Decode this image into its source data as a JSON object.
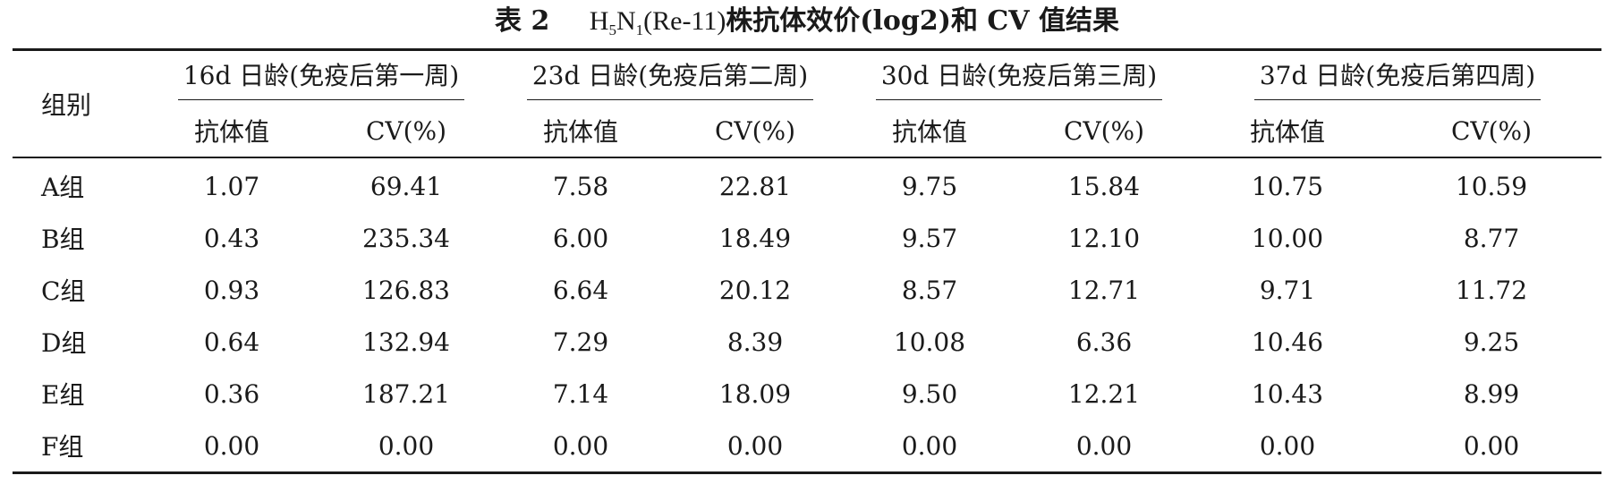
{
  "title": {
    "table_no": "表 2",
    "strain_h": "H",
    "strain_h_sub": "5",
    "strain_n": "N",
    "strain_n_sub": "1",
    "strain_rest": "(Re-11)",
    "rest": "株抗体效价(log2)和 CV 值结果"
  },
  "header": {
    "group_col": "组别",
    "periods": [
      "16d 日龄(免疫后第一周)",
      "23d 日龄(免疫后第二周)",
      "30d 日龄(免疫后第三周)",
      "37d 日龄(免疫后第四周)"
    ],
    "sub_titer": "抗体值",
    "sub_cv": "CV(%)"
  },
  "rows": [
    {
      "name": "A组",
      "values": [
        "1.07",
        "69.41",
        "7.58",
        "22.81",
        "9.75",
        "15.84",
        "10.75",
        "10.59"
      ]
    },
    {
      "name": "B组",
      "values": [
        "0.43",
        "235.34",
        "6.00",
        "18.49",
        "9.57",
        "12.10",
        "10.00",
        "8.77"
      ]
    },
    {
      "name": "C组",
      "values": [
        "0.93",
        "126.83",
        "6.64",
        "20.12",
        "8.57",
        "12.71",
        "9.71",
        "11.72"
      ]
    },
    {
      "name": "D组",
      "values": [
        "0.64",
        "132.94",
        "7.29",
        "8.39",
        "10.08",
        "6.36",
        "10.46",
        "9.25"
      ]
    },
    {
      "name": "E组",
      "values": [
        "0.36",
        "187.21",
        "7.14",
        "18.09",
        "9.50",
        "12.21",
        "10.43",
        "8.99"
      ]
    },
    {
      "name": "F组",
      "values": [
        "0.00",
        "0.00",
        "0.00",
        "0.00",
        "0.00",
        "0.00",
        "0.00",
        "0.00"
      ]
    }
  ]
}
